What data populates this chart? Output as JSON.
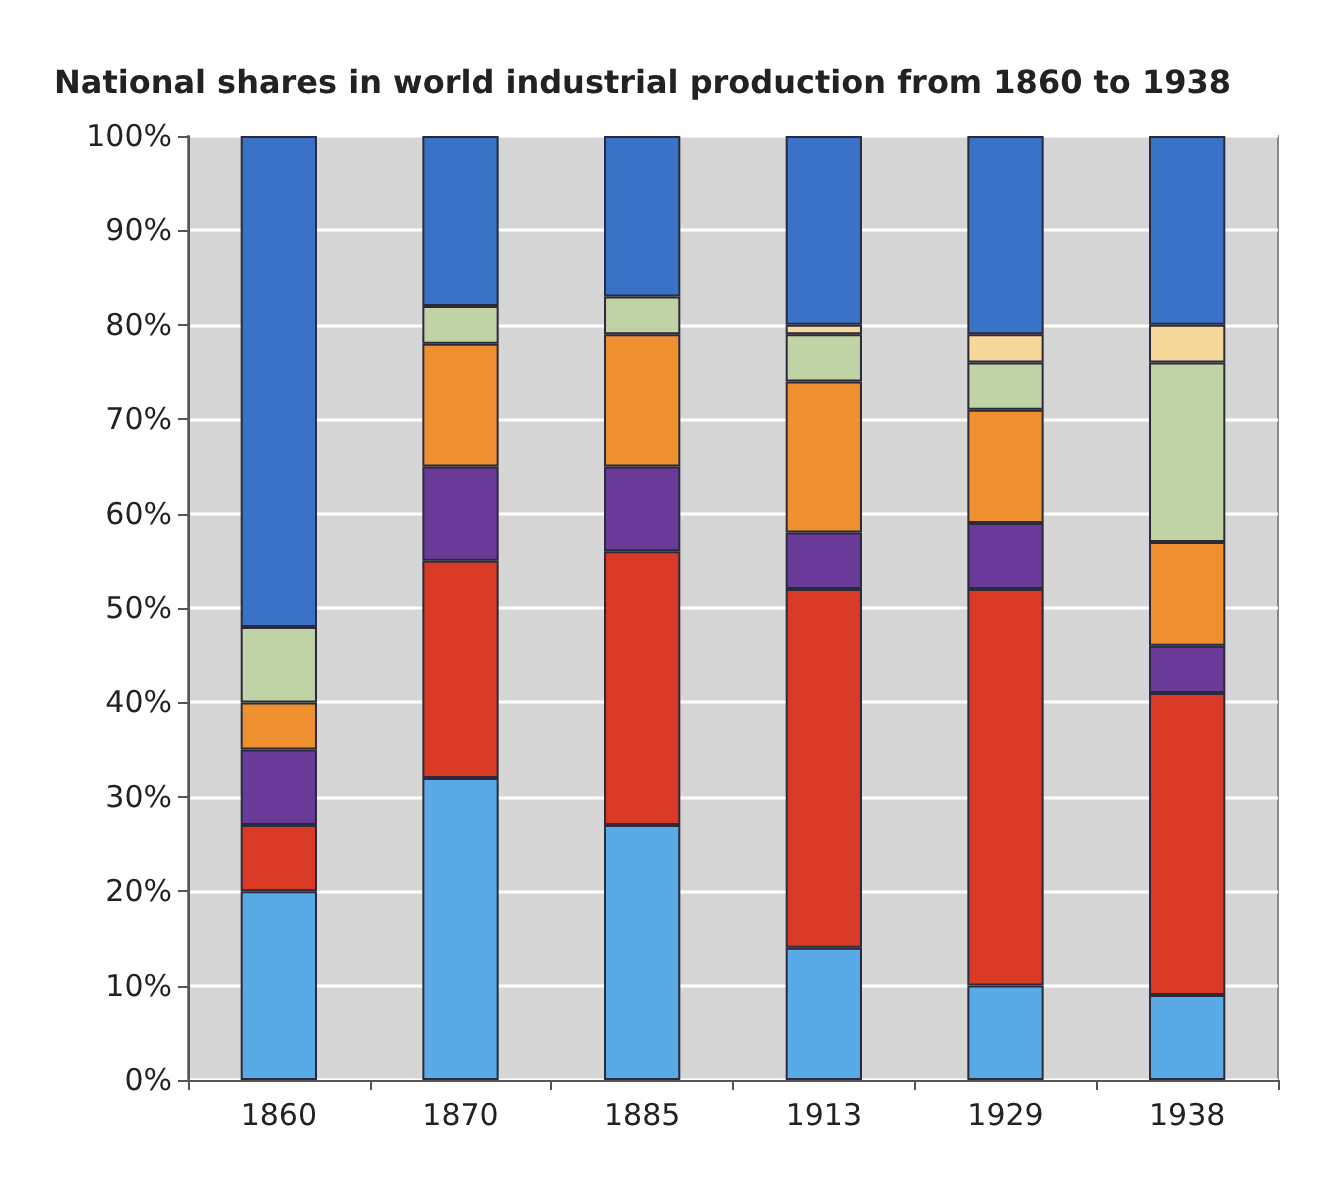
{
  "chart_data": {
    "type": "bar",
    "title": "National shares in world industrial production from 1860 to 1938",
    "categories": [
      "1860",
      "1870",
      "1885",
      "1913",
      "1929",
      "1938"
    ],
    "stacked": true,
    "series": [
      {
        "color": "#5aaae6",
        "values": [
          20,
          32,
          27,
          14,
          10,
          9
        ]
      },
      {
        "color": "#d93a25",
        "values": [
          7,
          23,
          29,
          38,
          42,
          32
        ]
      },
      {
        "color": "#6a3a98",
        "values": [
          8,
          10,
          9,
          6,
          7,
          5
        ]
      },
      {
        "color": "#ee8f30",
        "values": [
          5,
          13,
          14,
          16,
          12,
          11
        ]
      },
      {
        "color": "#c0d3a4",
        "values": [
          8,
          4,
          4,
          5,
          5,
          19
        ]
      },
      {
        "color": "#f5d89a",
        "values": [
          null,
          null,
          null,
          1,
          3,
          4
        ]
      },
      {
        "color": "#3a72c8",
        "values": [
          52,
          18,
          17,
          20,
          21,
          20
        ]
      }
    ],
    "ylim": [
      0,
      100
    ],
    "yticks": [
      {
        "value": 0,
        "label": "0%"
      },
      {
        "value": 10,
        "label": "10%"
      },
      {
        "value": 20,
        "label": "20%"
      },
      {
        "value": 30,
        "label": "30%"
      },
      {
        "value": 40,
        "label": "40%"
      },
      {
        "value": 50,
        "label": "50%"
      },
      {
        "value": 60,
        "label": "60%"
      },
      {
        "value": 70,
        "label": "70%"
      },
      {
        "value": 80,
        "label": "80%"
      },
      {
        "value": 90,
        "label": "90%"
      },
      {
        "value": 100,
        "label": "100%"
      }
    ],
    "grid": "y"
  }
}
